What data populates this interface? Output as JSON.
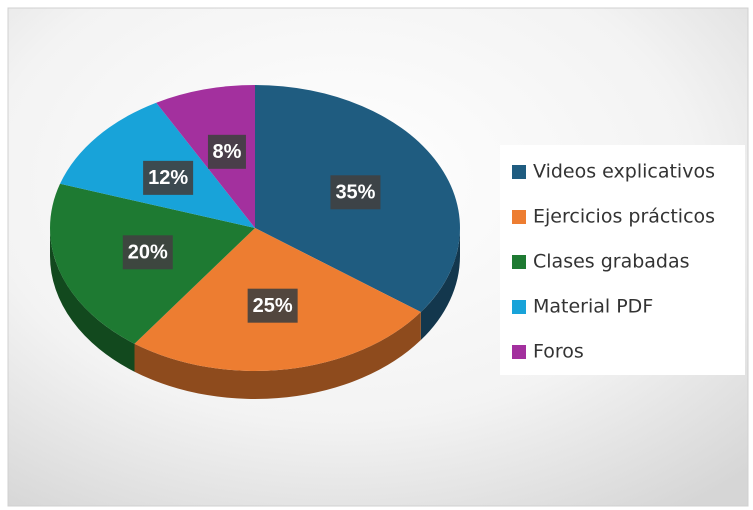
{
  "chart_data": {
    "type": "pie",
    "categories": [
      "Videos explicativos",
      "Ejercicios prácticos",
      "Clases grabadas",
      "Material PDF",
      "Foros"
    ],
    "values": [
      35,
      25,
      20,
      12,
      8
    ],
    "value_labels": [
      "35%",
      "25%",
      "20%",
      "12%",
      "8%"
    ],
    "colors": [
      "#1f5c80",
      "#ed7d31",
      "#1e7a32",
      "#18a3d9",
      "#a3309e"
    ],
    "legend": "right"
  }
}
